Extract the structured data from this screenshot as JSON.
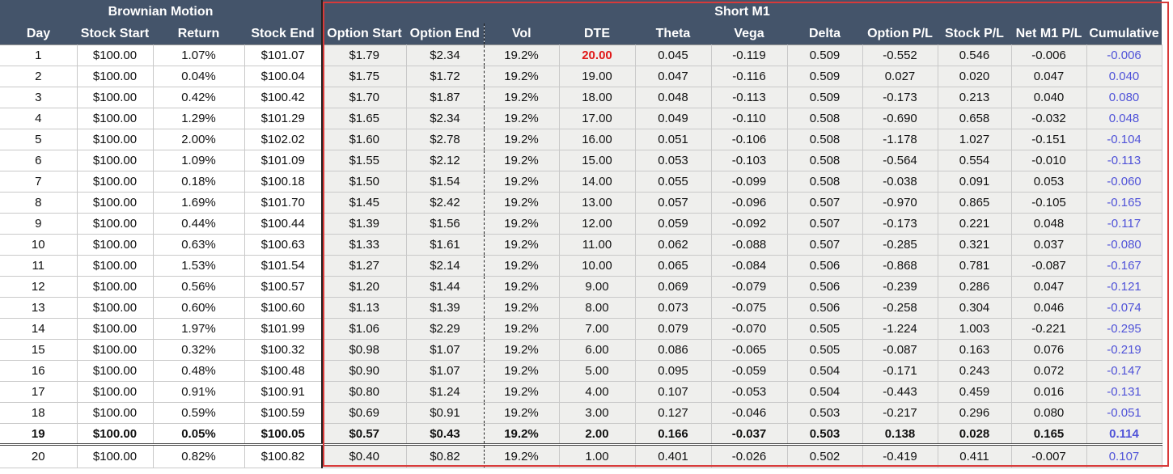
{
  "groups": {
    "brownian": "Brownian Motion",
    "short": "Short M1"
  },
  "columns": [
    "Day",
    "Stock Start",
    "Return",
    "Stock End",
    "Option Start",
    "Option End",
    "Vol",
    "DTE",
    "Theta",
    "Vega",
    "Delta",
    "Option P/L",
    "Stock P/L",
    "Net M1 P/L",
    "Cumulative"
  ],
  "colors": {
    "header_bg": "#44546a",
    "header_text": "#ffffff",
    "right_panel_bg": "#efefed",
    "cumulative_text": "#4f52d8",
    "dte_highlight": "#e01818",
    "box_border": "#d83a3a"
  },
  "rows": [
    [
      "1",
      "$100.00",
      "1.07%",
      "$101.07",
      "$1.79",
      "$2.34",
      "19.2%",
      "20.00",
      "0.045",
      "-0.119",
      "0.509",
      "-0.552",
      "0.546",
      "-0.006",
      "-0.006"
    ],
    [
      "2",
      "$100.00",
      "0.04%",
      "$100.04",
      "$1.75",
      "$1.72",
      "19.2%",
      "19.00",
      "0.047",
      "-0.116",
      "0.509",
      "0.027",
      "0.020",
      "0.047",
      "0.040"
    ],
    [
      "3",
      "$100.00",
      "0.42%",
      "$100.42",
      "$1.70",
      "$1.87",
      "19.2%",
      "18.00",
      "0.048",
      "-0.113",
      "0.509",
      "-0.173",
      "0.213",
      "0.040",
      "0.080"
    ],
    [
      "4",
      "$100.00",
      "1.29%",
      "$101.29",
      "$1.65",
      "$2.34",
      "19.2%",
      "17.00",
      "0.049",
      "-0.110",
      "0.508",
      "-0.690",
      "0.658",
      "-0.032",
      "0.048"
    ],
    [
      "5",
      "$100.00",
      "2.00%",
      "$102.02",
      "$1.60",
      "$2.78",
      "19.2%",
      "16.00",
      "0.051",
      "-0.106",
      "0.508",
      "-1.178",
      "1.027",
      "-0.151",
      "-0.104"
    ],
    [
      "6",
      "$100.00",
      "1.09%",
      "$101.09",
      "$1.55",
      "$2.12",
      "19.2%",
      "15.00",
      "0.053",
      "-0.103",
      "0.508",
      "-0.564",
      "0.554",
      "-0.010",
      "-0.113"
    ],
    [
      "7",
      "$100.00",
      "0.18%",
      "$100.18",
      "$1.50",
      "$1.54",
      "19.2%",
      "14.00",
      "0.055",
      "-0.099",
      "0.508",
      "-0.038",
      "0.091",
      "0.053",
      "-0.060"
    ],
    [
      "8",
      "$100.00",
      "1.69%",
      "$101.70",
      "$1.45",
      "$2.42",
      "19.2%",
      "13.00",
      "0.057",
      "-0.096",
      "0.507",
      "-0.970",
      "0.865",
      "-0.105",
      "-0.165"
    ],
    [
      "9",
      "$100.00",
      "0.44%",
      "$100.44",
      "$1.39",
      "$1.56",
      "19.2%",
      "12.00",
      "0.059",
      "-0.092",
      "0.507",
      "-0.173",
      "0.221",
      "0.048",
      "-0.117"
    ],
    [
      "10",
      "$100.00",
      "0.63%",
      "$100.63",
      "$1.33",
      "$1.61",
      "19.2%",
      "11.00",
      "0.062",
      "-0.088",
      "0.507",
      "-0.285",
      "0.321",
      "0.037",
      "-0.080"
    ],
    [
      "11",
      "$100.00",
      "1.53%",
      "$101.54",
      "$1.27",
      "$2.14",
      "19.2%",
      "10.00",
      "0.065",
      "-0.084",
      "0.506",
      "-0.868",
      "0.781",
      "-0.087",
      "-0.167"
    ],
    [
      "12",
      "$100.00",
      "0.56%",
      "$100.57",
      "$1.20",
      "$1.44",
      "19.2%",
      "9.00",
      "0.069",
      "-0.079",
      "0.506",
      "-0.239",
      "0.286",
      "0.047",
      "-0.121"
    ],
    [
      "13",
      "$100.00",
      "0.60%",
      "$100.60",
      "$1.13",
      "$1.39",
      "19.2%",
      "8.00",
      "0.073",
      "-0.075",
      "0.506",
      "-0.258",
      "0.304",
      "0.046",
      "-0.074"
    ],
    [
      "14",
      "$100.00",
      "1.97%",
      "$101.99",
      "$1.06",
      "$2.29",
      "19.2%",
      "7.00",
      "0.079",
      "-0.070",
      "0.505",
      "-1.224",
      "1.003",
      "-0.221",
      "-0.295"
    ],
    [
      "15",
      "$100.00",
      "0.32%",
      "$100.32",
      "$0.98",
      "$1.07",
      "19.2%",
      "6.00",
      "0.086",
      "-0.065",
      "0.505",
      "-0.087",
      "0.163",
      "0.076",
      "-0.219"
    ],
    [
      "16",
      "$100.00",
      "0.48%",
      "$100.48",
      "$0.90",
      "$1.07",
      "19.2%",
      "5.00",
      "0.095",
      "-0.059",
      "0.504",
      "-0.171",
      "0.243",
      "0.072",
      "-0.147"
    ],
    [
      "17",
      "$100.00",
      "0.91%",
      "$100.91",
      "$0.80",
      "$1.24",
      "19.2%",
      "4.00",
      "0.107",
      "-0.053",
      "0.504",
      "-0.443",
      "0.459",
      "0.016",
      "-0.131"
    ],
    [
      "18",
      "$100.00",
      "0.59%",
      "$100.59",
      "$0.69",
      "$0.91",
      "19.2%",
      "3.00",
      "0.127",
      "-0.046",
      "0.503",
      "-0.217",
      "0.296",
      "0.080",
      "-0.051"
    ],
    [
      "19",
      "$100.00",
      "0.05%",
      "$100.05",
      "$0.57",
      "$0.43",
      "19.2%",
      "2.00",
      "0.166",
      "-0.037",
      "0.503",
      "0.138",
      "0.028",
      "0.165",
      "0.114"
    ],
    [
      "20",
      "$100.00",
      "0.82%",
      "$100.82",
      "$0.40",
      "$0.82",
      "19.2%",
      "1.00",
      "0.401",
      "-0.026",
      "0.502",
      "-0.419",
      "0.411",
      "-0.007",
      "0.107"
    ]
  ]
}
